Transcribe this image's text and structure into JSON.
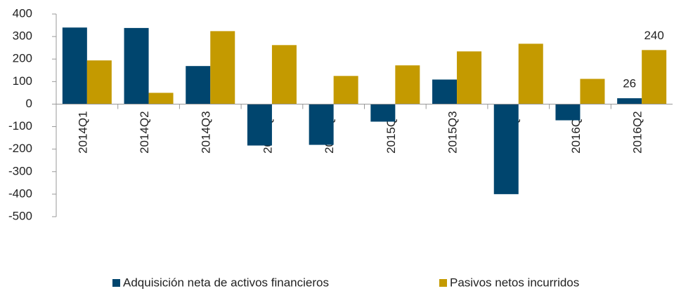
{
  "chart_data": {
    "type": "bar",
    "categories": [
      "2014Q1",
      "2014Q2",
      "2014Q3",
      "2014Q4",
      "2015Q1",
      "2015Q2",
      "2015Q3",
      "2015Q4",
      "2016Q1",
      "2016Q2"
    ],
    "series": [
      {
        "name": "Adquisición neta de activos financieros",
        "color": "#00456e",
        "values": [
          340,
          338,
          169,
          -184,
          -181,
          -78,
          109,
          -400,
          -72,
          26
        ],
        "value_labels": [
          null,
          null,
          null,
          null,
          null,
          null,
          null,
          null,
          null,
          "26"
        ]
      },
      {
        "name": "Pasivos netos incurridos",
        "color": "#c49a00",
        "values": [
          194,
          50,
          324,
          262,
          125,
          172,
          234,
          268,
          112,
          240
        ],
        "value_labels": [
          null,
          null,
          null,
          null,
          null,
          null,
          null,
          null,
          null,
          "240"
        ]
      }
    ],
    "ylim": [
      -500,
      400
    ],
    "yticks": [
      -500,
      -400,
      -300,
      -200,
      -100,
      0,
      100,
      200,
      300,
      400
    ],
    "grid": false,
    "legend": "bottom"
  }
}
